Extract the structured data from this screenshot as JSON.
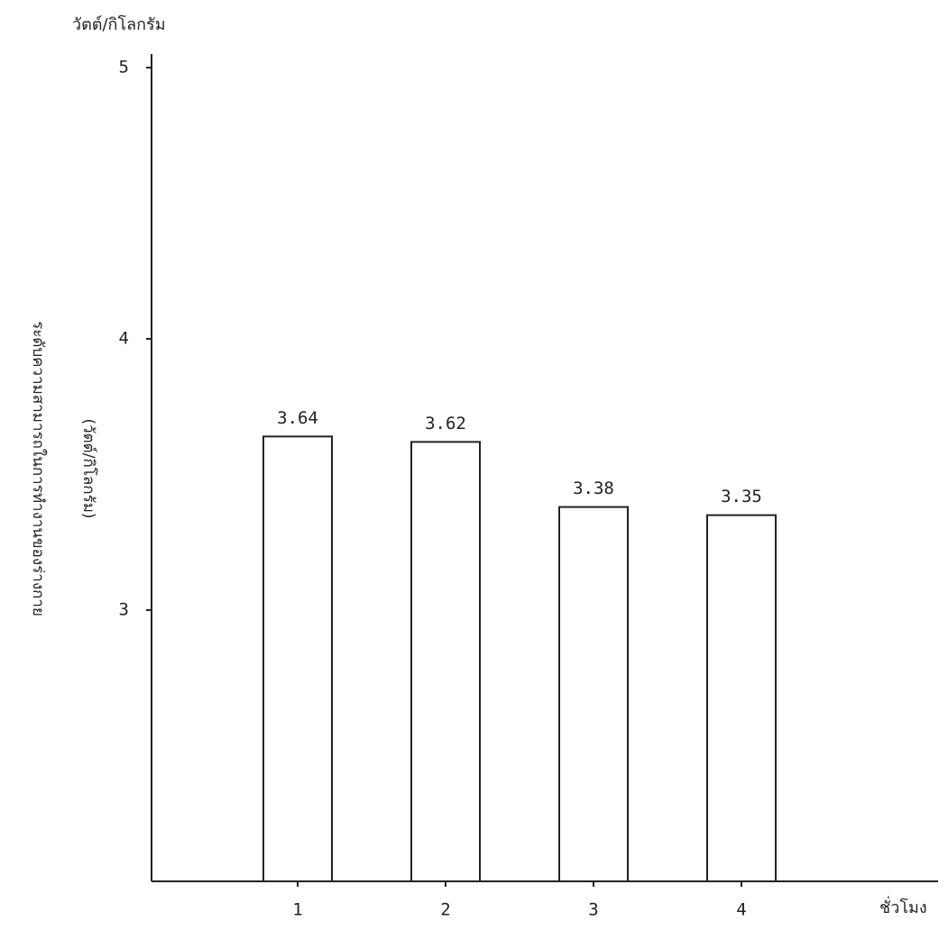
{
  "chart_data": {
    "type": "bar",
    "y_unit": "วัตต์/กิโลกรัม",
    "y_label": "ระดับความสามารถในการทำงานของร่างกาย",
    "y_label_unit": "(วัตต์/กิโลกรัม)",
    "x_label": "ชั่วโมง",
    "categories": [
      "1",
      "2",
      "3",
      "4"
    ],
    "values": [
      3.64,
      3.62,
      3.38,
      3.35
    ],
    "color": "#ffffff",
    "ylim": [
      2,
      5
    ],
    "yticks": [
      3,
      4,
      5
    ],
    "grid": false
  }
}
